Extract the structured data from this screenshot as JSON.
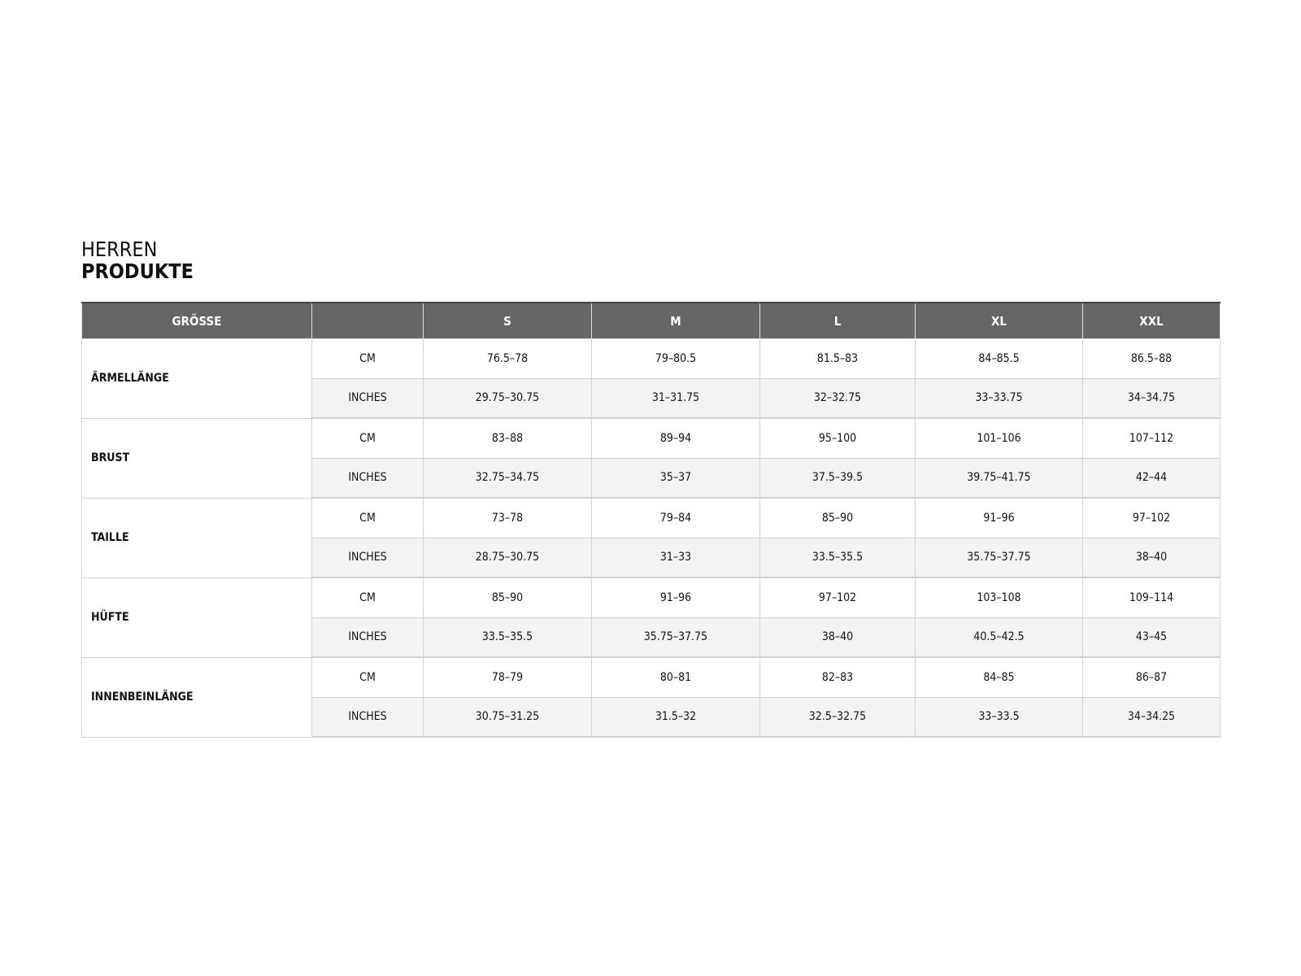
{
  "title": {
    "line1": "HERREN",
    "line2": "PRODUKTE"
  },
  "table": {
    "headers": [
      "GRÖSSE",
      "",
      "S",
      "M",
      "L",
      "XL",
      "XXL"
    ],
    "unit_labels": {
      "cm": "CM",
      "inches": "INCHES"
    },
    "rows": [
      {
        "measure": "ÄRMELLÄNGE",
        "cm": [
          "76.5–78",
          "79–80.5",
          "81.5–83",
          "84–85.5",
          "86.5–88"
        ],
        "inches": [
          "29.75–30.75",
          "31–31.75",
          "32–32.75",
          "33–33.75",
          "34–34.75"
        ]
      },
      {
        "measure": "BRUST",
        "cm": [
          "83–88",
          "89–94",
          "95–100",
          "101–106",
          "107–112"
        ],
        "inches": [
          "32.75–34.75",
          "35–37",
          "37.5–39.5",
          "39.75–41.75",
          "42–44"
        ]
      },
      {
        "measure": "TAILLE",
        "cm": [
          "73–78",
          "79–84",
          "85–90",
          "91–96",
          "97–102"
        ],
        "inches": [
          "28.75–30.75",
          "31–33",
          "33.5–35.5",
          "35.75–37.75",
          "38–40"
        ]
      },
      {
        "measure": "HÜFTE",
        "cm": [
          "85–90",
          "91–96",
          "97–102",
          "103–108",
          "109–114"
        ],
        "inches": [
          "33.5–35.5",
          "35.75–37.75",
          "38–40",
          "40.5–42.5",
          "43–45"
        ]
      },
      {
        "measure": "INNENBEINLÄNGE",
        "cm": [
          "78–79",
          "80–81",
          "82–83",
          "84–85",
          "86–87"
        ],
        "inches": [
          "30.75–31.25",
          "31.5–32",
          "32.5–32.75",
          "33–33.5",
          "34–34.25"
        ]
      }
    ]
  },
  "colors": {
    "header_bg": "#666666",
    "alt_row_bg": "#f3f3f3",
    "border": "#d3d3d3"
  }
}
